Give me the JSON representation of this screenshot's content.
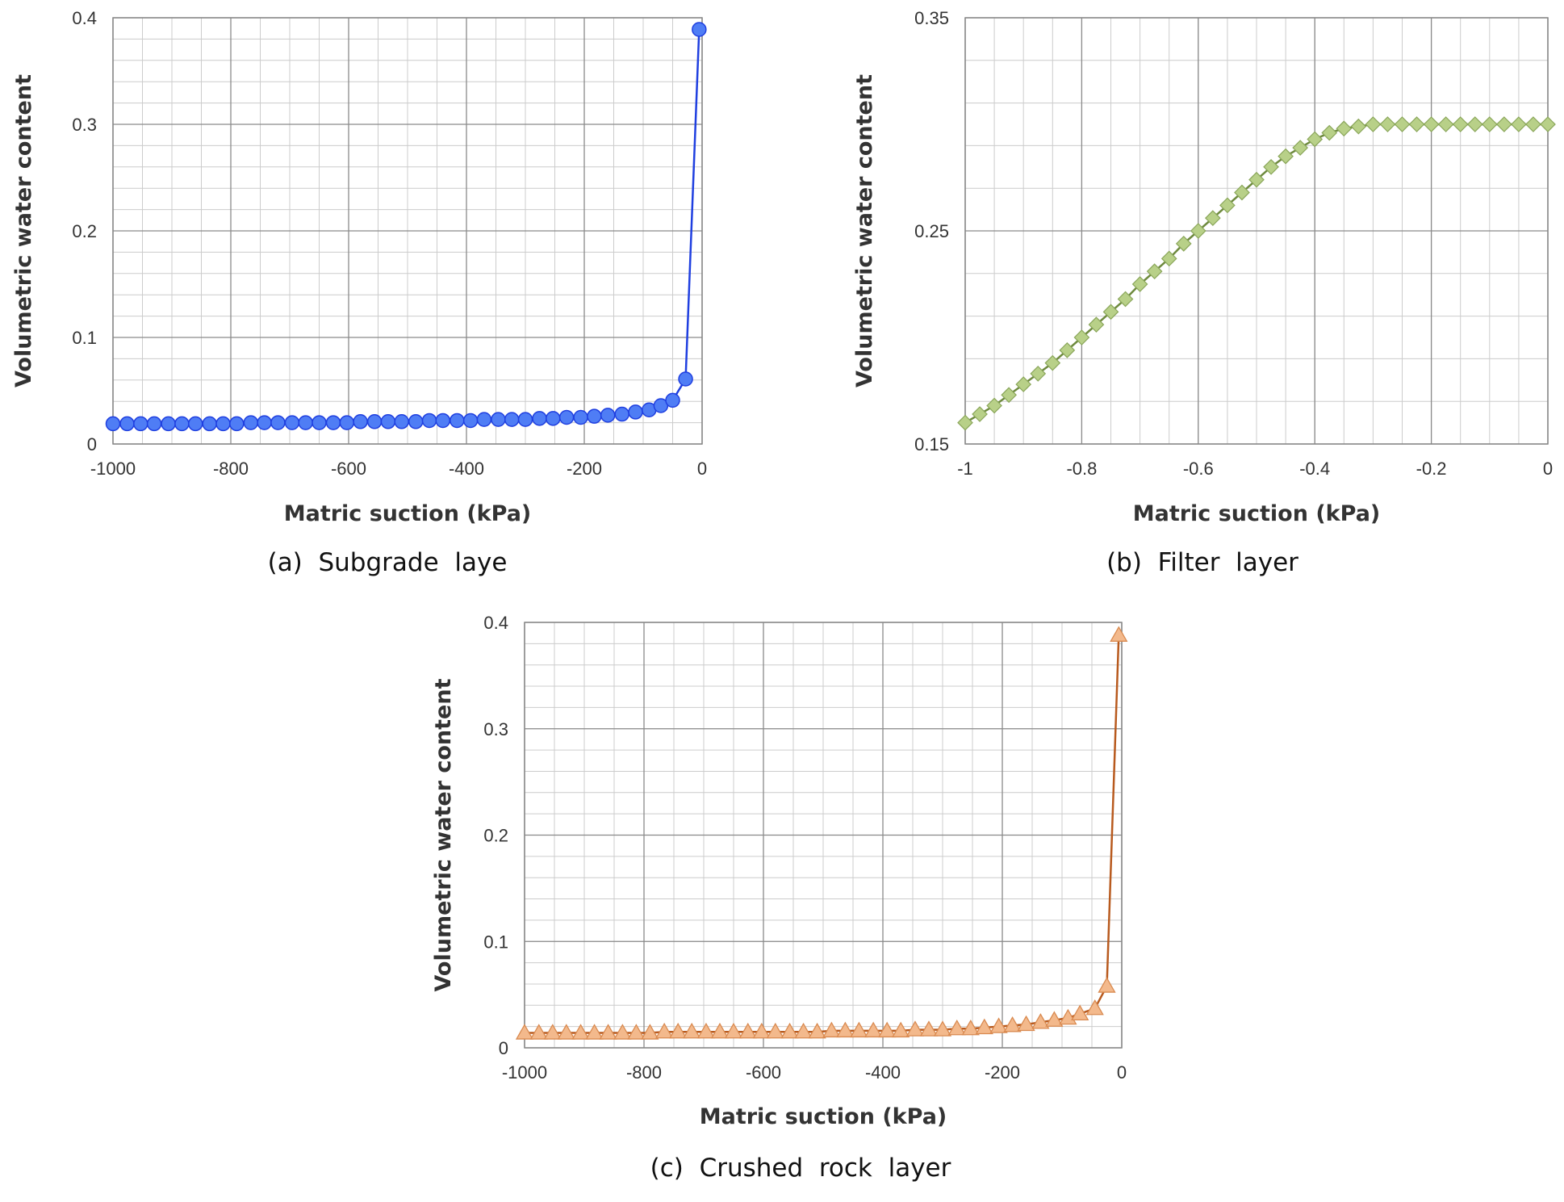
{
  "chart_data": [
    {
      "type": "line",
      "caption": "(a)  Subgrade  laye",
      "xlabel": "Matric suction (kPa)",
      "ylabel": "Volumetric water content",
      "xlim": [
        -1000,
        0
      ],
      "ylim": [
        0,
        0.4
      ],
      "xticks": [
        -1000,
        -800,
        -600,
        -400,
        -200,
        0
      ],
      "xtick_labels": [
        "-1000",
        "-800",
        "-600",
        "-400",
        "-200",
        "0"
      ],
      "yticks": [
        0,
        0.1,
        0.2,
        0.3,
        0.4
      ],
      "ytick_labels": [
        "0",
        "0.1",
        "0.2",
        "0.3",
        "0.4"
      ],
      "marker": "circle",
      "color": "#4f7df5",
      "line_color": "#1f3fe0",
      "grid": true,
      "series": [
        {
          "x": [
            -1000,
            -976,
            -953,
            -930,
            -906,
            -883,
            -860,
            -836,
            -813,
            -790,
            -766,
            -743,
            -720,
            -696,
            -673,
            -650,
            -626,
            -603,
            -580,
            -556,
            -533,
            -510,
            -486,
            -463,
            -440,
            -416,
            -393,
            -370,
            -346,
            -323,
            -300,
            -276,
            -253,
            -230,
            -206,
            -183,
            -160,
            -136,
            -113,
            -90,
            -70,
            -50,
            -28,
            -5
          ],
          "y": [
            0.019,
            0.019,
            0.019,
            0.019,
            0.019,
            0.019,
            0.019,
            0.019,
            0.019,
            0.019,
            0.02,
            0.02,
            0.02,
            0.02,
            0.02,
            0.02,
            0.02,
            0.02,
            0.021,
            0.021,
            0.021,
            0.021,
            0.021,
            0.022,
            0.022,
            0.022,
            0.022,
            0.023,
            0.023,
            0.023,
            0.023,
            0.024,
            0.024,
            0.025,
            0.025,
            0.026,
            0.027,
            0.028,
            0.03,
            0.032,
            0.036,
            0.041,
            0.061,
            0.389
          ]
        }
      ]
    },
    {
      "type": "line",
      "caption": "(b)  Filter  layer",
      "xlabel": "Matric suction (kPa)",
      "ylabel": "Volumetric water content",
      "xlim": [
        -1,
        0
      ],
      "ylim": [
        0.15,
        0.35
      ],
      "xticks": [
        -1,
        -0.8,
        -0.6,
        -0.4,
        -0.2,
        0
      ],
      "xtick_labels": [
        "-1",
        "-0.8",
        "-0.6",
        "-0.4",
        "-0.2",
        "0"
      ],
      "yticks": [
        0.15,
        0.25,
        0.35
      ],
      "ytick_labels": [
        "0.15",
        "0.25",
        "0.35"
      ],
      "marker": "diamond",
      "color": "#b8d088",
      "line_color": "#6e8a3e",
      "grid": true,
      "series": [
        {
          "x": [
            -1,
            -0.975,
            -0.95,
            -0.925,
            -0.9,
            -0.875,
            -0.85,
            -0.825,
            -0.8,
            -0.775,
            -0.75,
            -0.725,
            -0.7,
            -0.675,
            -0.65,
            -0.625,
            -0.6,
            -0.575,
            -0.55,
            -0.525,
            -0.5,
            -0.475,
            -0.45,
            -0.425,
            -0.4,
            -0.375,
            -0.35,
            -0.325,
            -0.3,
            -0.275,
            -0.25,
            -0.225,
            -0.2,
            -0.175,
            -0.15,
            -0.125,
            -0.1,
            -0.075,
            -0.05,
            -0.025,
            0
          ],
          "y": [
            0.16,
            0.164,
            0.168,
            0.173,
            0.178,
            0.183,
            0.188,
            0.194,
            0.2,
            0.206,
            0.212,
            0.218,
            0.225,
            0.231,
            0.237,
            0.244,
            0.25,
            0.256,
            0.262,
            0.268,
            0.274,
            0.28,
            0.285,
            0.289,
            0.293,
            0.296,
            0.298,
            0.299,
            0.3,
            0.3,
            0.3,
            0.3,
            0.3,
            0.3,
            0.3,
            0.3,
            0.3,
            0.3,
            0.3,
            0.3,
            0.3
          ]
        }
      ]
    },
    {
      "type": "line",
      "caption": "(c)  Crushed  rock  layer",
      "xlabel": "Matric suction (kPa)",
      "ylabel": "Volumetric water content",
      "xlim": [
        -1000,
        0
      ],
      "ylim": [
        0,
        0.4
      ],
      "xticks": [
        -1000,
        -800,
        -600,
        -400,
        -200,
        0
      ],
      "xtick_labels": [
        "-1000",
        "-800",
        "-600",
        "-400",
        "-200",
        "0"
      ],
      "yticks": [
        0,
        0.1,
        0.2,
        0.3,
        0.4
      ],
      "ytick_labels": [
        "0",
        "0.1",
        "0.2",
        "0.3",
        "0.4"
      ],
      "marker": "triangle",
      "color": "#f3b98c",
      "line_color": "#b85a1e",
      "grid": true,
      "series": [
        {
          "x": [
            -1000,
            -976,
            -953,
            -930,
            -906,
            -883,
            -860,
            -836,
            -813,
            -790,
            -766,
            -743,
            -720,
            -696,
            -673,
            -650,
            -626,
            -603,
            -580,
            -556,
            -533,
            -510,
            -486,
            -463,
            -440,
            -416,
            -393,
            -370,
            -346,
            -323,
            -300,
            -276,
            -253,
            -230,
            -206,
            -183,
            -160,
            -136,
            -113,
            -90,
            -70,
            -45,
            -25,
            -5
          ],
          "y": [
            0.014,
            0.014,
            0.014,
            0.014,
            0.014,
            0.014,
            0.014,
            0.014,
            0.014,
            0.014,
            0.015,
            0.015,
            0.015,
            0.015,
            0.015,
            0.015,
            0.015,
            0.015,
            0.015,
            0.015,
            0.015,
            0.015,
            0.016,
            0.016,
            0.016,
            0.016,
            0.016,
            0.016,
            0.017,
            0.017,
            0.017,
            0.018,
            0.018,
            0.019,
            0.02,
            0.021,
            0.022,
            0.024,
            0.026,
            0.028,
            0.032,
            0.037,
            0.058,
            0.388
          ]
        }
      ]
    }
  ]
}
